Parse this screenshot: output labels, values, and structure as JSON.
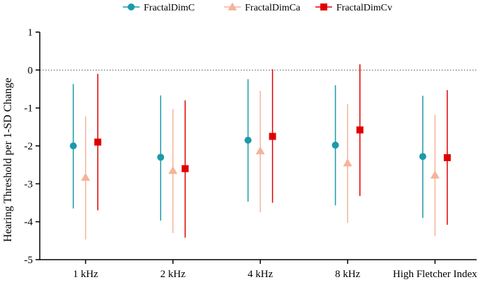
{
  "chart_data": {
    "type": "scatter",
    "categories": [
      "1 kHz",
      "2 kHz",
      "4 kHz",
      "8 kHz",
      "High Fletcher Index"
    ],
    "ylabel": "Hearing Threshold per 1-SD Change",
    "xlabel": "",
    "ylim": [
      -5,
      1
    ],
    "yticks": [
      1,
      0,
      -1,
      -2,
      -3,
      -4,
      -5
    ],
    "reference_line": 0,
    "legend_position": "top-center",
    "series": [
      {
        "name": "FractalDimC",
        "marker": "circle",
        "color": "#1b9aaa",
        "values": [
          -2.0,
          -2.3,
          -1.85,
          -1.98,
          -2.28
        ],
        "lower": [
          -3.65,
          -3.97,
          -3.47,
          -3.57,
          -3.9
        ],
        "upper": [
          -0.37,
          -0.67,
          -0.24,
          -0.4,
          -0.68
        ]
      },
      {
        "name": "FractalDimCa",
        "marker": "triangle",
        "color": "#f4b49a",
        "values": [
          -2.83,
          -2.65,
          -2.13,
          -2.45,
          -2.77
        ],
        "lower": [
          -4.47,
          -4.3,
          -3.75,
          -4.03,
          -4.38
        ],
        "upper": [
          -1.22,
          -1.03,
          -0.55,
          -0.9,
          -1.18
        ]
      },
      {
        "name": "FractalDimCv",
        "marker": "square",
        "color": "#e00000",
        "values": [
          -1.9,
          -2.6,
          -1.75,
          -1.58,
          -2.31
        ],
        "lower": [
          -3.7,
          -4.42,
          -3.5,
          -3.32,
          -4.08
        ],
        "upper": [
          -0.1,
          -0.8,
          0.02,
          0.15,
          -0.53
        ]
      }
    ]
  }
}
